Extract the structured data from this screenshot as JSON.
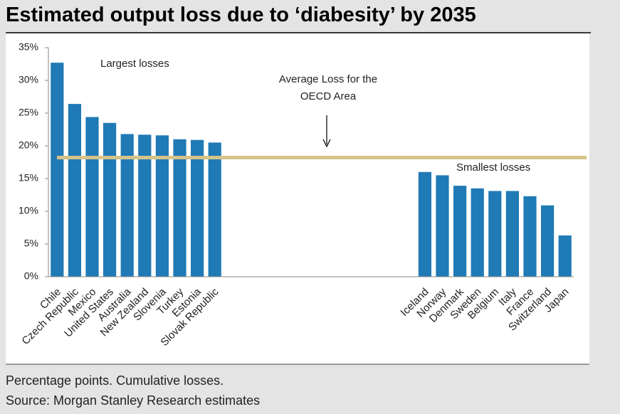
{
  "chart_data": {
    "type": "bar",
    "title": "Estimated output loss due to ‘diabesity’ by 2035",
    "categories": [
      "Chile",
      "Czech Republic",
      "Mexico",
      "United States",
      "Australia",
      "New Zealand",
      "Slovenia",
      "Turkey",
      "Estonia",
      "Slovak Republic",
      null,
      null,
      null,
      null,
      null,
      null,
      null,
      null,
      null,
      null,
      null,
      "Iceland",
      "Norway",
      "Denmark",
      "Sweden",
      "Belgium",
      "Italy",
      "France",
      "Switzerland",
      "Japan"
    ],
    "values": [
      32.7,
      26.4,
      24.4,
      23.5,
      21.8,
      21.7,
      21.6,
      21.0,
      20.9,
      20.5,
      null,
      null,
      null,
      null,
      null,
      null,
      null,
      null,
      null,
      null,
      null,
      16.0,
      15.5,
      13.9,
      13.5,
      13.1,
      13.1,
      12.3,
      10.9,
      6.3
    ],
    "color": "#1f7ab5",
    "ylim": [
      0,
      35
    ],
    "yticks": [
      {
        "value": 0,
        "label": "0%"
      },
      {
        "value": 5,
        "label": "5%"
      },
      {
        "value": 10,
        "label": "10%"
      },
      {
        "value": 15,
        "label": "15%"
      },
      {
        "value": 20,
        "label": "20%"
      },
      {
        "value": 25,
        "label": "25%"
      },
      {
        "value": 30,
        "label": "30%"
      },
      {
        "value": 35,
        "label": "35%"
      }
    ],
    "average": {
      "value": 18.2,
      "color": "#d5c389",
      "label": [
        "Average Loss for the",
        "OECD Area"
      ]
    },
    "annotations": [
      "Largest losses",
      "Smallest losses"
    ],
    "notes": [
      "Percentage points. Cumulative losses.",
      "Source: Morgan Stanley Research estimates"
    ]
  }
}
